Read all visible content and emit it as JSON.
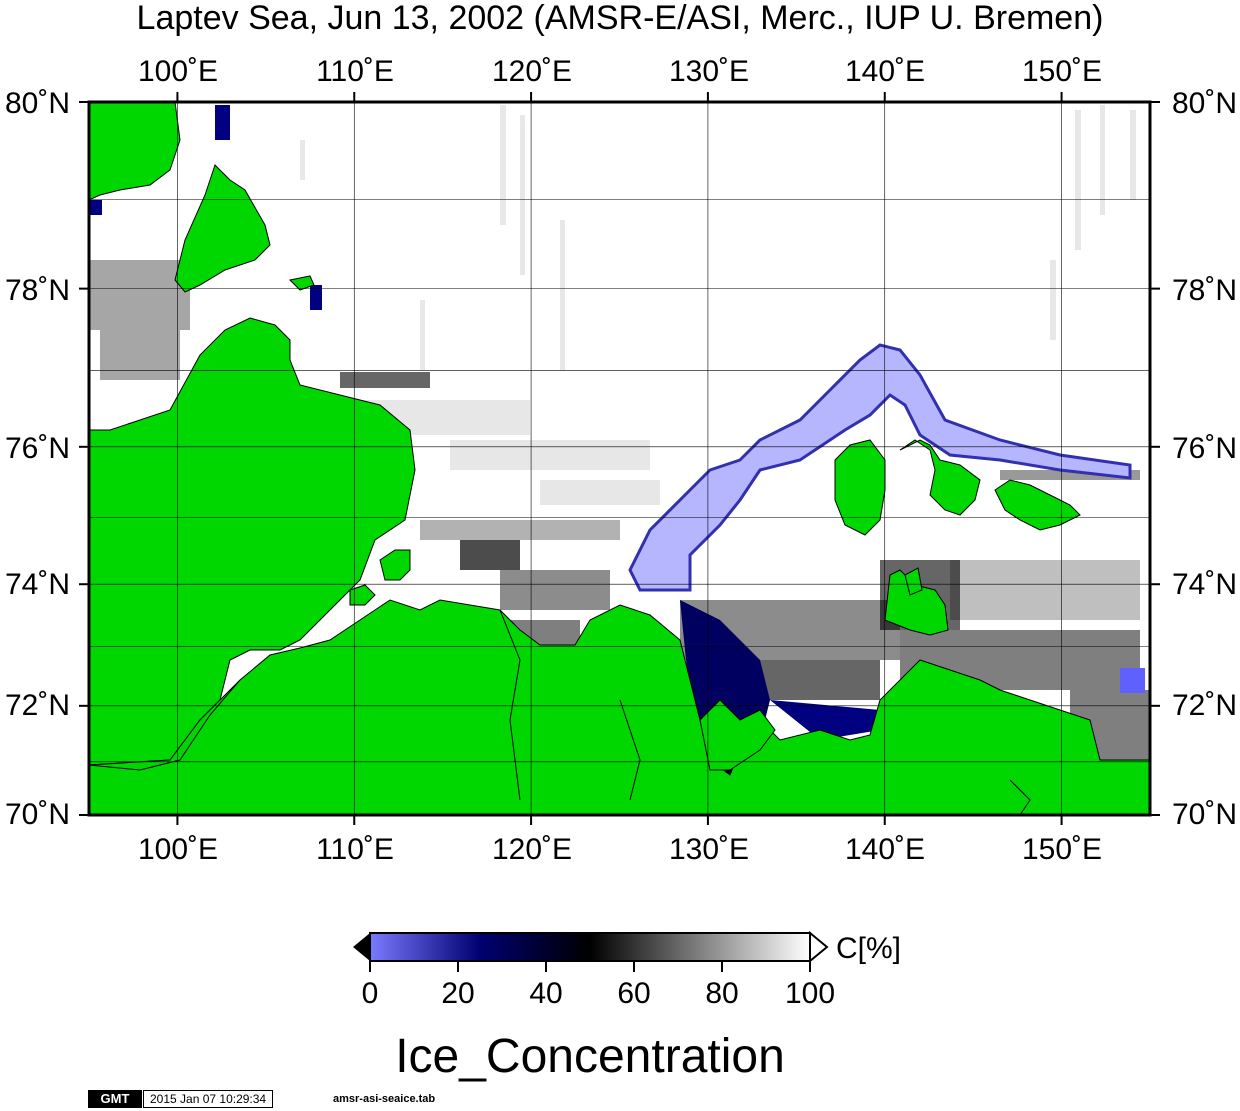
{
  "title": "Laptev Sea, Jun 13, 2002 (AMSR-E/ASI, Merc., IUP U. Bremen)",
  "map": {
    "lon_range": [
      95,
      155
    ],
    "lat_range": [
      70,
      80
    ],
    "lon_ticks": [
      {
        "value": 100,
        "label": "100˚E"
      },
      {
        "value": 110,
        "label": "110˚E"
      },
      {
        "value": 120,
        "label": "120˚E"
      },
      {
        "value": 130,
        "label": "130˚E"
      },
      {
        "value": 140,
        "label": "140˚E"
      },
      {
        "value": 150,
        "label": "150˚E"
      }
    ],
    "lat_ticks": [
      {
        "value": 80,
        "label": "80˚N"
      },
      {
        "value": 78,
        "label": "78˚N"
      },
      {
        "value": 76,
        "label": "76˚N"
      },
      {
        "value": 74,
        "label": "74˚N"
      },
      {
        "value": 72,
        "label": "72˚N"
      },
      {
        "value": 70,
        "label": "70˚N"
      }
    ],
    "land_color": "#00d700",
    "grid_color": "#000000",
    "sea_ice_colors": {
      "low": "#8080ff",
      "mid_low": "#000080",
      "mid": "#000000",
      "high": "#ffffff"
    }
  },
  "colorbar": {
    "ticks": [
      "0",
      "20",
      "40",
      "60",
      "80",
      "100"
    ],
    "unit": "C[%]",
    "stops": [
      "#7a7aff",
      "#000070",
      "#000000",
      "#808080",
      "#ffffff"
    ]
  },
  "variable_name": "Ice_Concentration",
  "footer": {
    "logo": "GMT",
    "timestamp": "2015 Jan 07 10:29:34",
    "filename": "amsr-asi-seaice.tab"
  }
}
